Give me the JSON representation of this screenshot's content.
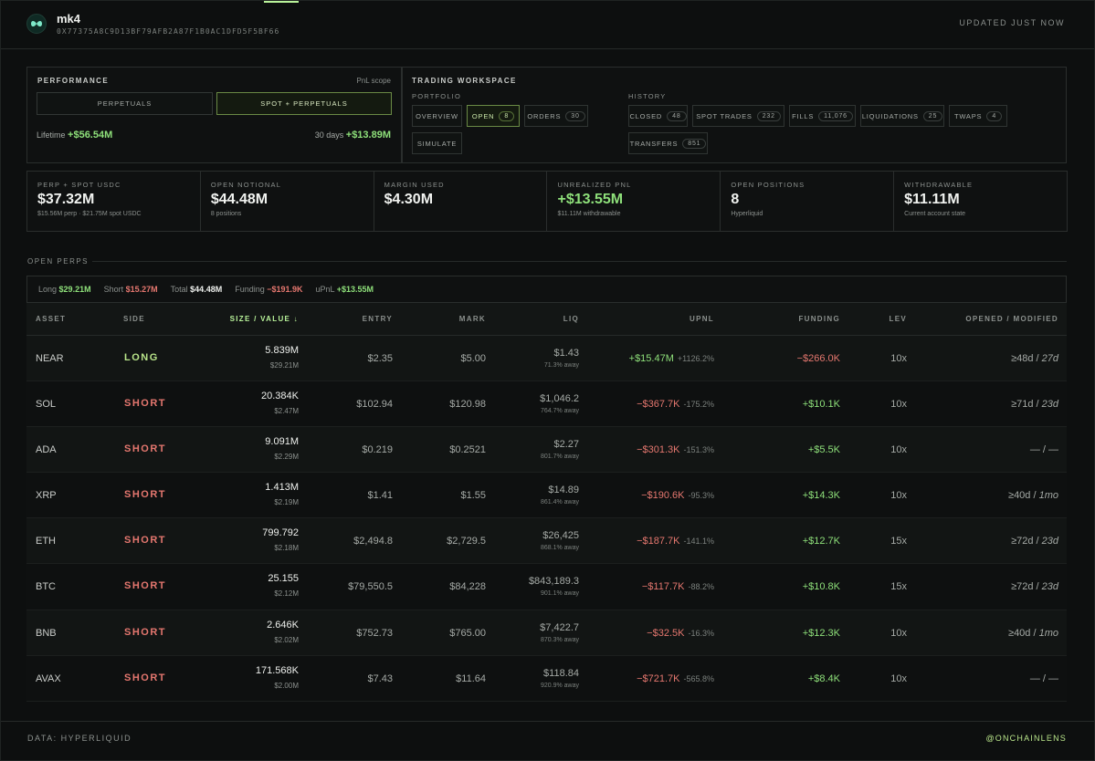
{
  "header": {
    "name": "mk4",
    "address": "0X77375A8C9D13BF79AFB2A87F1B0AC1DFD5F5BF66",
    "updated": "UPDATED JUST NOW"
  },
  "performance": {
    "title": "PERFORMANCE",
    "scope_label": "PnL scope",
    "toggle_perps": "PERPETUALS",
    "toggle_spot": "SPOT + PERPETUALS",
    "lifetime_label": "Lifetime",
    "lifetime_value": "+$56.54M",
    "days_label": "30 days",
    "days_value": "+$13.89M"
  },
  "workspace": {
    "title": "TRADING WORKSPACE",
    "portfolio_label": "PORTFOLIO",
    "history_label": "HISTORY",
    "overview": "OVERVIEW",
    "open": "OPEN",
    "open_count": "8",
    "orders": "ORDERS",
    "orders_count": "30",
    "simulate": "SIMULATE",
    "closed": "CLOSED",
    "closed_count": "48",
    "spot_trades": "SPOT TRADES",
    "spot_trades_count": "232",
    "fills": "FILLS",
    "fills_count": "11,076",
    "liquidations": "LIQUIDATIONS",
    "liquidations_count": "25",
    "twaps": "TWAPS",
    "twaps_count": "4",
    "transfers": "TRANSFERS",
    "transfers_count": "851"
  },
  "metrics": [
    {
      "label": "PERP + SPOT USDC",
      "value": "$37.32M",
      "sub": "$15.56M perp · $21.75M spot USDC"
    },
    {
      "label": "OPEN NOTIONAL",
      "value": "$44.48M",
      "sub": "8 positions"
    },
    {
      "label": "MARGIN USED",
      "value": "$4.30M",
      "sub": ""
    },
    {
      "label": "UNREALIZED PNL",
      "value": "+$13.55M",
      "sub": "$11.11M withdrawable"
    },
    {
      "label": "OPEN POSITIONS",
      "value": "8",
      "sub": "Hyperliquid"
    },
    {
      "label": "WITHDRAWABLE",
      "value": "$11.11M",
      "sub": "Current account state"
    }
  ],
  "open_perps": {
    "title": "OPEN PERPS",
    "summary": {
      "long_label": "Long",
      "long_value": "$29.21M",
      "short_label": "Short",
      "short_value": "$15.27M",
      "total_label": "Total",
      "total_value": "$44.48M",
      "funding_label": "Funding",
      "funding_value": "−$191.9K",
      "upnl_label": "uPnL",
      "upnl_value": "+$13.55M"
    },
    "columns": {
      "asset": "ASSET",
      "side": "SIDE",
      "size": "SIZE / VALUE ↓",
      "entry": "ENTRY",
      "mark": "MARK",
      "liq": "LIQ",
      "upnl": "UPNL",
      "funding": "FUNDING",
      "lev": "LEV",
      "opened": "OPENED / MODIFIED"
    },
    "rows": [
      {
        "asset": "NEAR",
        "side": "LONG",
        "size": "5.839M",
        "value": "$29.21M",
        "entry": "$2.35",
        "mark": "$5.00",
        "liq": "$1.43",
        "liq_away": "71.3% away",
        "upnl": "+$15.47M",
        "upnl_pct": "+1126.2%",
        "funding": "−$266.0K",
        "lev": "10x",
        "opened": "≥48d",
        "modified": "27d"
      },
      {
        "asset": "SOL",
        "side": "SHORT",
        "size": "20.384K",
        "value": "$2.47M",
        "entry": "$102.94",
        "mark": "$120.98",
        "liq": "$1,046.2",
        "liq_away": "764.7% away",
        "upnl": "−$367.7K",
        "upnl_pct": "-175.2%",
        "funding": "+$10.1K",
        "lev": "10x",
        "opened": "≥71d",
        "modified": "23d"
      },
      {
        "asset": "ADA",
        "side": "SHORT",
        "size": "9.091M",
        "value": "$2.29M",
        "entry": "$0.219",
        "mark": "$0.2521",
        "liq": "$2.27",
        "liq_away": "801.7% away",
        "upnl": "−$301.3K",
        "upnl_pct": "-151.3%",
        "funding": "+$5.5K",
        "lev": "10x",
        "opened": "—",
        "modified": "—"
      },
      {
        "asset": "XRP",
        "side": "SHORT",
        "size": "1.413M",
        "value": "$2.19M",
        "entry": "$1.41",
        "mark": "$1.55",
        "liq": "$14.89",
        "liq_away": "861.4% away",
        "upnl": "−$190.6K",
        "upnl_pct": "-95.3%",
        "funding": "+$14.3K",
        "lev": "10x",
        "opened": "≥40d",
        "modified": "1mo"
      },
      {
        "asset": "ETH",
        "side": "SHORT",
        "size": "799.792",
        "value": "$2.18M",
        "entry": "$2,494.8",
        "mark": "$2,729.5",
        "liq": "$26,425",
        "liq_away": "868.1% away",
        "upnl": "−$187.7K",
        "upnl_pct": "-141.1%",
        "funding": "+$12.7K",
        "lev": "15x",
        "opened": "≥72d",
        "modified": "23d"
      },
      {
        "asset": "BTC",
        "side": "SHORT",
        "size": "25.155",
        "value": "$2.12M",
        "entry": "$79,550.5",
        "mark": "$84,228",
        "liq": "$843,189.3",
        "liq_away": "901.1% away",
        "upnl": "−$117.7K",
        "upnl_pct": "-88.2%",
        "funding": "+$10.8K",
        "lev": "15x",
        "opened": "≥72d",
        "modified": "23d"
      },
      {
        "asset": "BNB",
        "side": "SHORT",
        "size": "2.646K",
        "value": "$2.02M",
        "entry": "$752.73",
        "mark": "$765.00",
        "liq": "$7,422.7",
        "liq_away": "870.3% away",
        "upnl": "−$32.5K",
        "upnl_pct": "-16.3%",
        "funding": "+$12.3K",
        "lev": "10x",
        "opened": "≥40d",
        "modified": "1mo"
      },
      {
        "asset": "AVAX",
        "side": "SHORT",
        "size": "171.568K",
        "value": "$2.00M",
        "entry": "$7.43",
        "mark": "$11.64",
        "liq": "$118.84",
        "liq_away": "920.9% away",
        "upnl": "−$721.7K",
        "upnl_pct": "-565.8%",
        "funding": "+$8.4K",
        "lev": "10x",
        "opened": "—",
        "modified": "—"
      }
    ]
  },
  "footer": {
    "source": "DATA: HYPERLIQUID",
    "handle": "@ONCHAINLENS"
  },
  "colors": {
    "accent": "#b9f39a",
    "positive": "#8ee07a",
    "negative": "#e5776f",
    "background": "#0d0f0f"
  }
}
